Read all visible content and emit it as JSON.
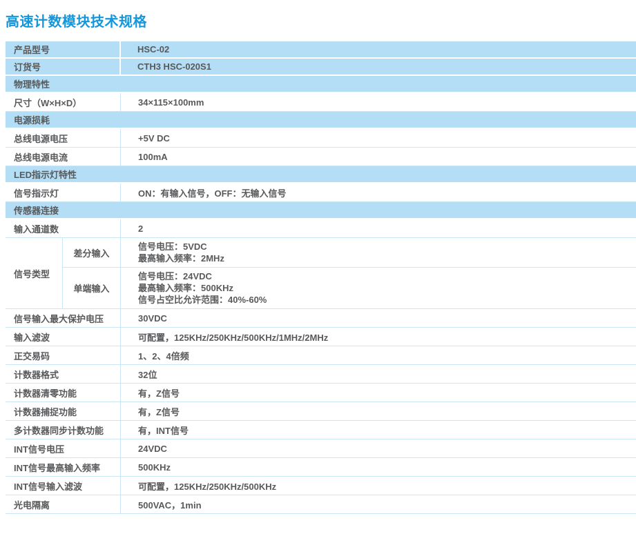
{
  "page_title": "高速计数模块技术规格",
  "colors": {
    "title_blue": "#1496DB",
    "row_blue": "#B3DEF6",
    "divider_blue": "#C9E6F7",
    "text_gray": "#58595B"
  },
  "spec_table": {
    "rows": [
      {
        "type": "blue",
        "label": "产品型号",
        "value": "HSC-02"
      },
      {
        "type": "blue",
        "label": "订货号",
        "value": "CTH3 HSC-020S1"
      },
      {
        "type": "section",
        "label": "物理特性"
      },
      {
        "type": "data",
        "label": "尺寸（W×H×D）",
        "value": "34×115×100mm"
      },
      {
        "type": "section",
        "label": "电源损耗"
      },
      {
        "type": "data",
        "label": "总线电源电压",
        "value": "+5V DC"
      },
      {
        "type": "data",
        "label": "总线电源电流",
        "value": "100mA"
      },
      {
        "type": "section",
        "label": "LED指示灯特性"
      },
      {
        "type": "data",
        "label": "信号指示灯",
        "value": "ON：有输入信号，OFF：无输入信号"
      },
      {
        "type": "section",
        "label": "传感器连接"
      },
      {
        "type": "data",
        "label": "输入通道数",
        "value": "2"
      },
      {
        "type": "group",
        "label": "信号类型",
        "subrows": [
          {
            "label": "差分输入",
            "lines": [
              "信号电压：5VDC",
              "最高输入频率：2MHz"
            ]
          },
          {
            "label": "单端输入",
            "lines": [
              "信号电压：24VDC",
              "最高输入频率：500KHz",
              "信号占空比允许范围：40%-60%"
            ]
          }
        ]
      },
      {
        "type": "data",
        "label": "信号输入最大保护电压",
        "value": "30VDC"
      },
      {
        "type": "data",
        "label": "输入滤波",
        "value": "可配置，125KHz/250KHz/500KHz/1MHz/2MHz"
      },
      {
        "type": "data",
        "label": "正交易码",
        "value": "1、2、4倍频"
      },
      {
        "type": "data",
        "label": "计数器格式",
        "value": "32位"
      },
      {
        "type": "data",
        "label": "计数器清零功能",
        "value": "有，Z信号"
      },
      {
        "type": "data",
        "label": "计数器捕捉功能",
        "value": "有，Z信号"
      },
      {
        "type": "data",
        "label": "多计数器同步计数功能",
        "value": "有，INT信号"
      },
      {
        "type": "data",
        "label": "INT信号电压",
        "value": "24VDC"
      },
      {
        "type": "data",
        "label": "INT信号最高输入频率",
        "value": "500KHz"
      },
      {
        "type": "data",
        "label": "INT信号输入滤波",
        "value": "可配置，125KHz/250KHz/500KHz"
      },
      {
        "type": "data",
        "label": "光电隔离",
        "value": "500VAC，1min"
      }
    ]
  }
}
